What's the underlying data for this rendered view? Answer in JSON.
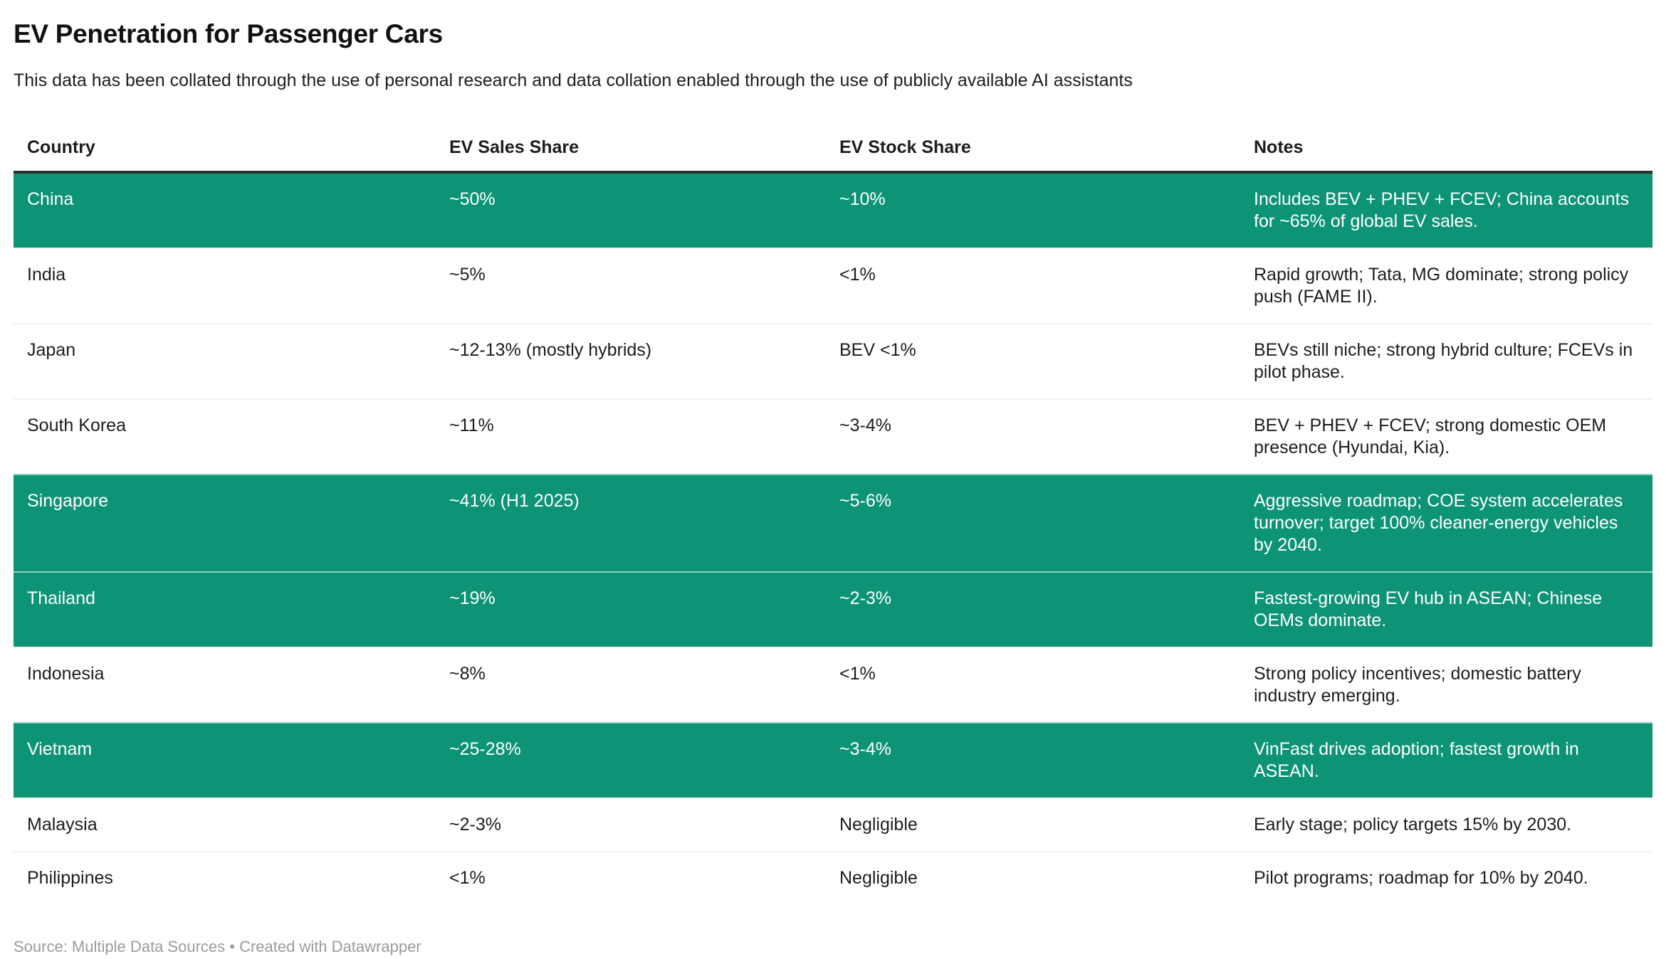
{
  "chart_data": {
    "type": "table",
    "title": "EV Penetration for Passenger Cars",
    "subtitle": "This data has been collated through the use of personal research and data collation enabled through the use of publicly available AI assistants",
    "columns": [
      "Country",
      "EV Sales Share",
      "EV Stock Share",
      "Notes"
    ],
    "rows": [
      {
        "country": "China",
        "sales": "~50%",
        "stock": "~10%",
        "notes": "Includes BEV + PHEV + FCEV; China accounts for ~65% of global EV sales.",
        "highlight": true
      },
      {
        "country": "India",
        "sales": "~5%",
        "stock": "<1%",
        "notes": "Rapid growth; Tata, MG dominate; strong policy push (FAME II).",
        "highlight": false
      },
      {
        "country": "Japan",
        "sales": "~12-13% (mostly hybrids)",
        "stock": "BEV <1%",
        "notes": "BEVs still niche; strong hybrid culture; FCEVs in pilot phase.",
        "highlight": false
      },
      {
        "country": "South Korea",
        "sales": "~11%",
        "stock": "~3-4%",
        "notes": "BEV + PHEV + FCEV; strong domestic OEM presence (Hyundai, Kia).",
        "highlight": false
      },
      {
        "country": "Singapore",
        "sales": "~41% (H1 2025)",
        "stock": "~5-6%",
        "notes": "Aggressive roadmap; COE system accelerates turnover; target 100% cleaner-energy vehicles by 2040.",
        "highlight": true
      },
      {
        "country": "Thailand",
        "sales": "~19%",
        "stock": "~2-3%",
        "notes": "Fastest-growing EV hub in ASEAN; Chinese OEMs dominate.",
        "highlight": true
      },
      {
        "country": "Indonesia",
        "sales": "~8%",
        "stock": "<1%",
        "notes": "Strong policy incentives; domestic battery industry emerging.",
        "highlight": false
      },
      {
        "country": "Vietnam",
        "sales": "~25-28%",
        "stock": "~3-4%",
        "notes": "VinFast drives adoption; fastest growth in ASEAN.",
        "highlight": true
      },
      {
        "country": "Malaysia",
        "sales": "~2-3%",
        "stock": "Negligible",
        "notes": "Early stage; policy targets 15% by 2030.",
        "highlight": false
      },
      {
        "country": "Philippines",
        "sales": "<1%",
        "stock": "Negligible",
        "notes": "Pilot programs; roadmap for 10% by 2040.",
        "highlight": false
      }
    ],
    "highlighted_rows": [
      "China",
      "Singapore",
      "Thailand",
      "Vietnam"
    ],
    "highlight_color": "#0d9376",
    "source": "Source: Multiple Data Sources • Created with Datawrapper",
    "legend_position": "none",
    "grid": "horizontal-dividers"
  }
}
